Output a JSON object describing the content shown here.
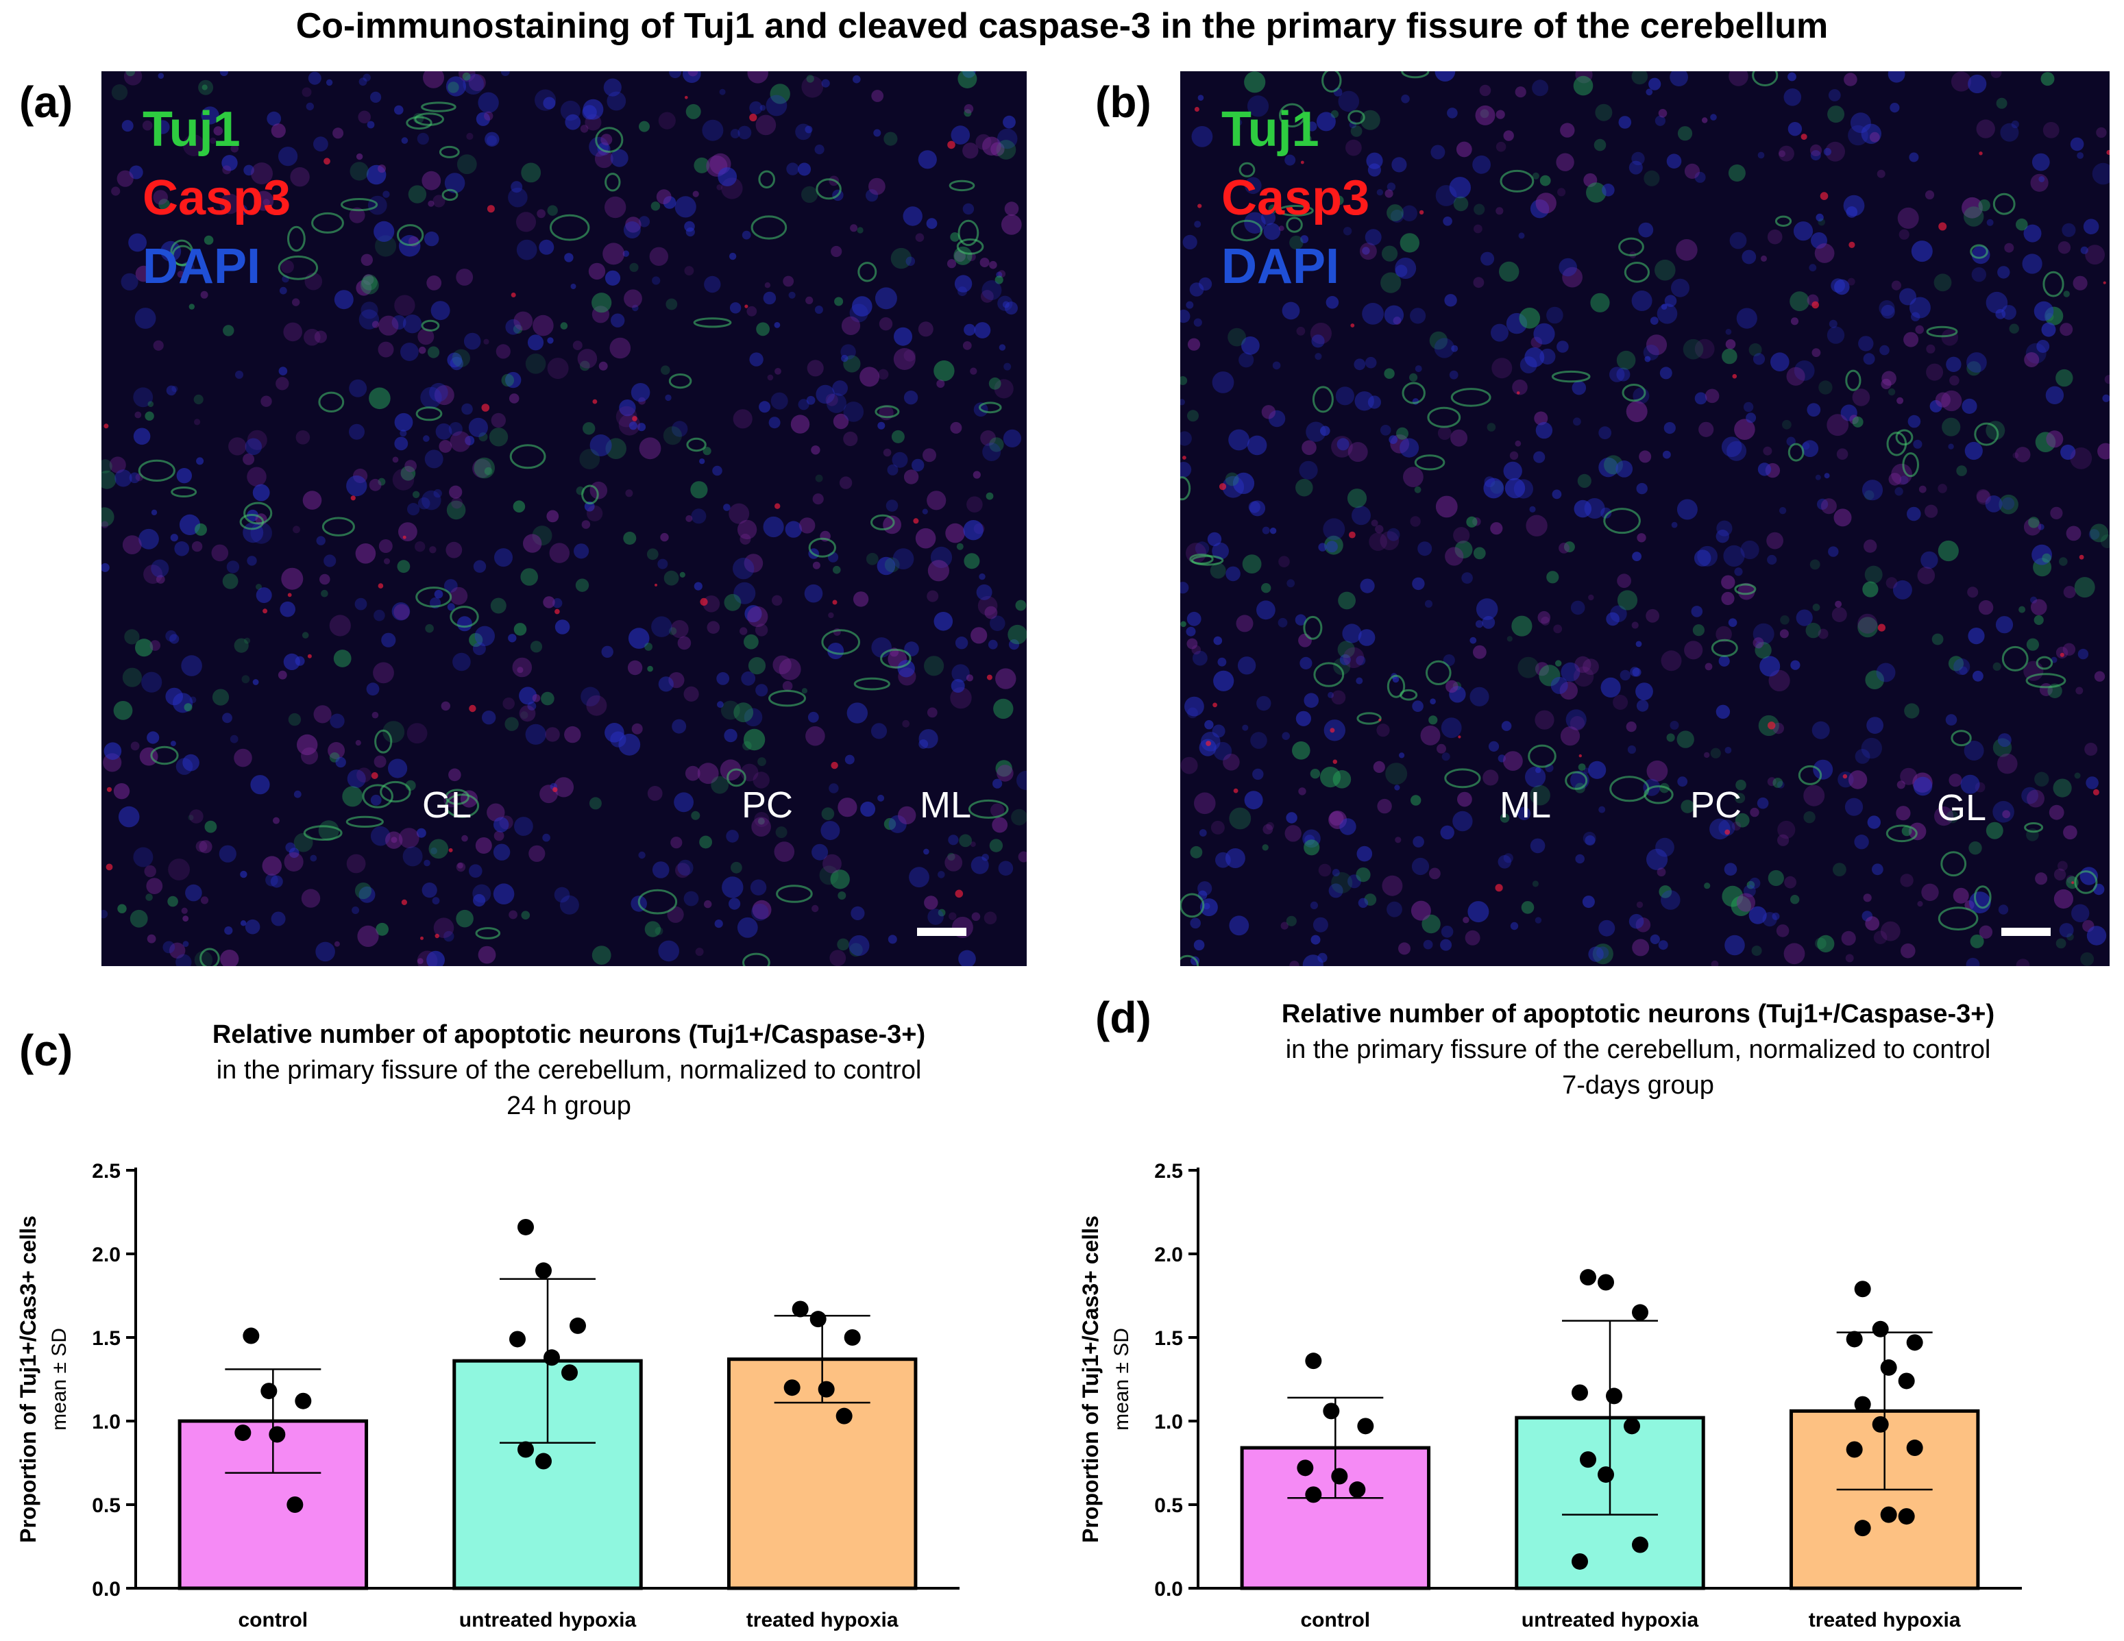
{
  "title": "Co-immunostaining of Tuj1 and cleaved caspase-3 in the primary fissure of the cerebellum",
  "panels": {
    "a": {
      "letter": "(a)",
      "legend": [
        {
          "label": "Tuj1",
          "color": "#2ecc40"
        },
        {
          "label": "Casp3",
          "color": "#ff1a1a"
        },
        {
          "label": "DAPI",
          "color": "#1f4fd6"
        }
      ],
      "layers": [
        "GL",
        "PC",
        "ML"
      ]
    },
    "b": {
      "letter": "(b)",
      "legend": [
        {
          "label": "Tuj1",
          "color": "#2ecc40"
        },
        {
          "label": "Casp3",
          "color": "#ff1a1a"
        },
        {
          "label": "DAPI",
          "color": "#1f4fd6"
        }
      ],
      "layers": [
        "ML",
        "PC",
        "GL"
      ]
    },
    "c": {
      "letter": "(c)",
      "title_bold": "Relative number of apoptotic neurons (Tuj1+/Caspase-3+)",
      "title_line2": "in the primary fissure of the cerebellum, normalized to control",
      "title_line3": "24 h group"
    },
    "d": {
      "letter": "(d)",
      "title_bold": "Relative number of apoptotic neurons (Tuj1+/Caspase-3+)",
      "title_line2": "in the primary fissure of the cerebellum, normalized to control",
      "title_line3": "7-days group"
    }
  },
  "chart_data": [
    {
      "type": "bar",
      "panel": "c",
      "ylabel": "Proportion of Tuj1+/Cas3+ cells",
      "ylabel_sub": "mean ± SD",
      "ylim": [
        0,
        2.5
      ],
      "yticks": [
        "0.0",
        "0.5",
        "1.0",
        "1.5",
        "2.0",
        "2.5"
      ],
      "categories": [
        "control",
        "untreated hypoxia",
        "treated hypoxia"
      ],
      "colors": [
        "#f58af5",
        "#8ff7df",
        "#fdc182"
      ],
      "values": [
        1.0,
        1.36,
        1.37
      ],
      "sd": [
        0.31,
        0.49,
        0.26
      ],
      "points": [
        [
          1.51,
          1.18,
          1.12,
          0.93,
          0.92,
          0.5
        ],
        [
          2.16,
          1.9,
          1.57,
          1.49,
          1.38,
          1.29,
          0.83,
          0.76
        ],
        [
          1.67,
          1.61,
          1.5,
          1.2,
          1.19,
          1.03
        ]
      ]
    },
    {
      "type": "bar",
      "panel": "d",
      "ylabel": "Proportion of Tuj1+/Cas3+ cells",
      "ylabel_sub": "mean ± SD",
      "ylim": [
        0,
        2.5
      ],
      "yticks": [
        "0.0",
        "0.5",
        "1.0",
        "1.5",
        "2.0",
        "2.5"
      ],
      "categories": [
        "control",
        "untreated hypoxia",
        "treated hypoxia"
      ],
      "colors": [
        "#f58af5",
        "#8ff7df",
        "#fdc182"
      ],
      "values": [
        0.84,
        1.02,
        1.06
      ],
      "sd": [
        0.3,
        0.58,
        0.47
      ],
      "points": [
        [
          1.36,
          1.06,
          0.97,
          0.72,
          0.67,
          0.59,
          0.56
        ],
        [
          1.86,
          1.83,
          1.65,
          1.17,
          1.15,
          0.97,
          0.77,
          0.68,
          0.26,
          0.16
        ],
        [
          1.79,
          1.55,
          1.47,
          1.49,
          1.32,
          1.24,
          1.1,
          0.98,
          0.84,
          0.83,
          0.44,
          0.43,
          0.36
        ]
      ]
    }
  ]
}
